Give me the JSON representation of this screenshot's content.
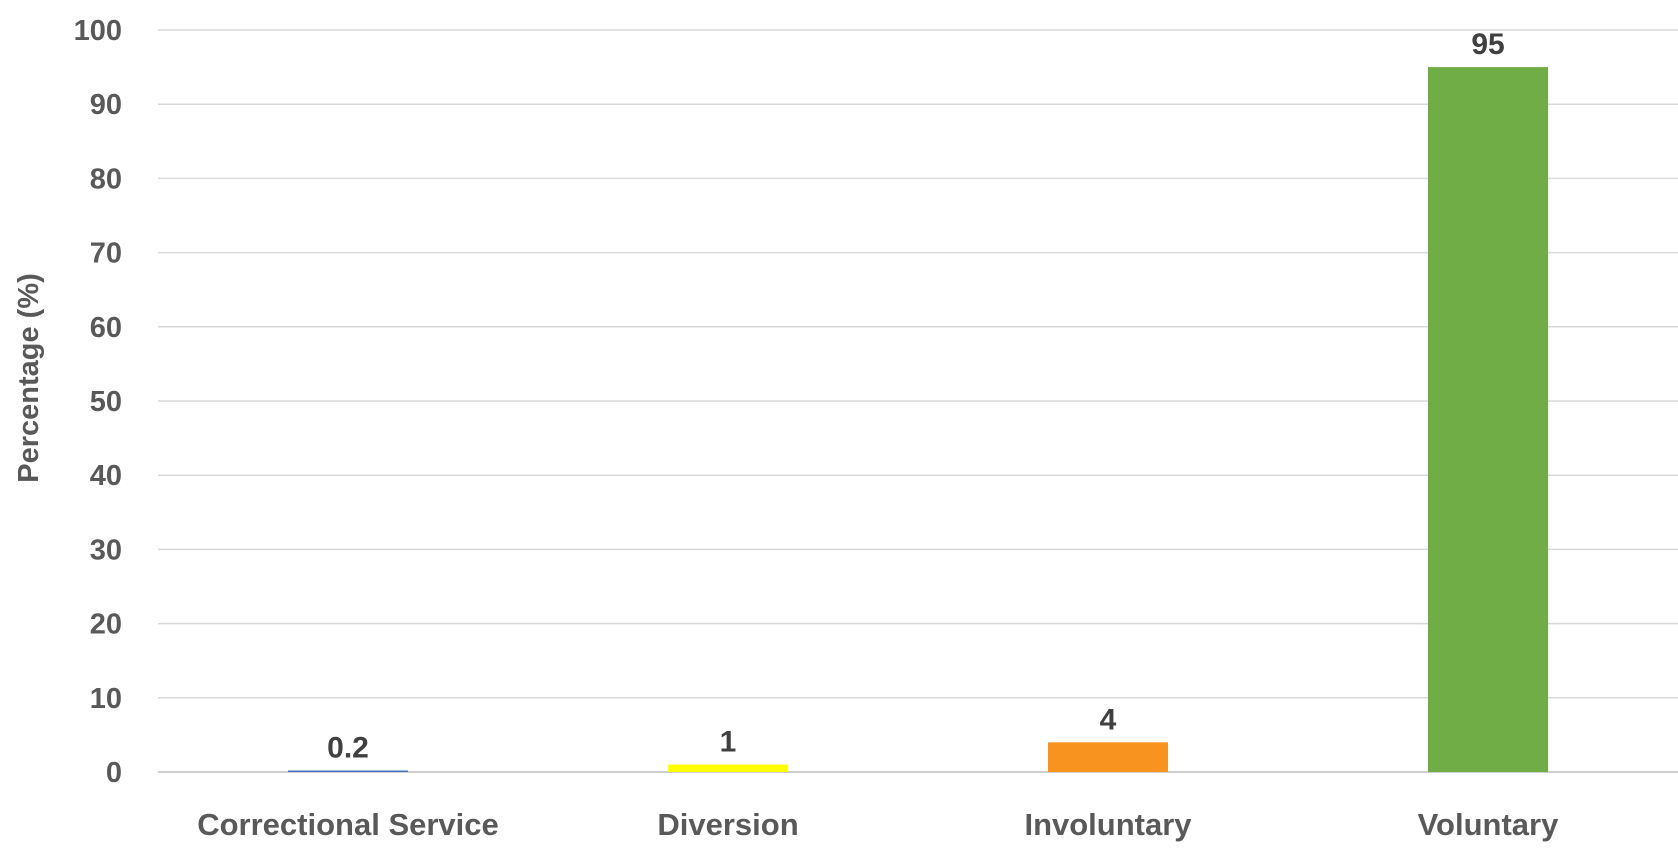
{
  "chart_data": {
    "type": "bar",
    "title": "",
    "xlabel": "",
    "ylabel": "Percentage (%)",
    "categories": [
      "Correctional Service",
      "Diversion",
      "Involuntary",
      "Voluntary"
    ],
    "values": [
      0.2,
      1,
      4,
      95
    ],
    "data_labels": [
      "0.2",
      "1",
      "4",
      "95"
    ],
    "colors": [
      "#4472C4",
      "#FFFF00",
      "#F7931E",
      "#70AD47"
    ],
    "ylim": [
      0,
      100
    ],
    "yticks": [
      0,
      10,
      20,
      30,
      40,
      50,
      60,
      70,
      80,
      90,
      100
    ],
    "grid": true,
    "legend": "none"
  }
}
